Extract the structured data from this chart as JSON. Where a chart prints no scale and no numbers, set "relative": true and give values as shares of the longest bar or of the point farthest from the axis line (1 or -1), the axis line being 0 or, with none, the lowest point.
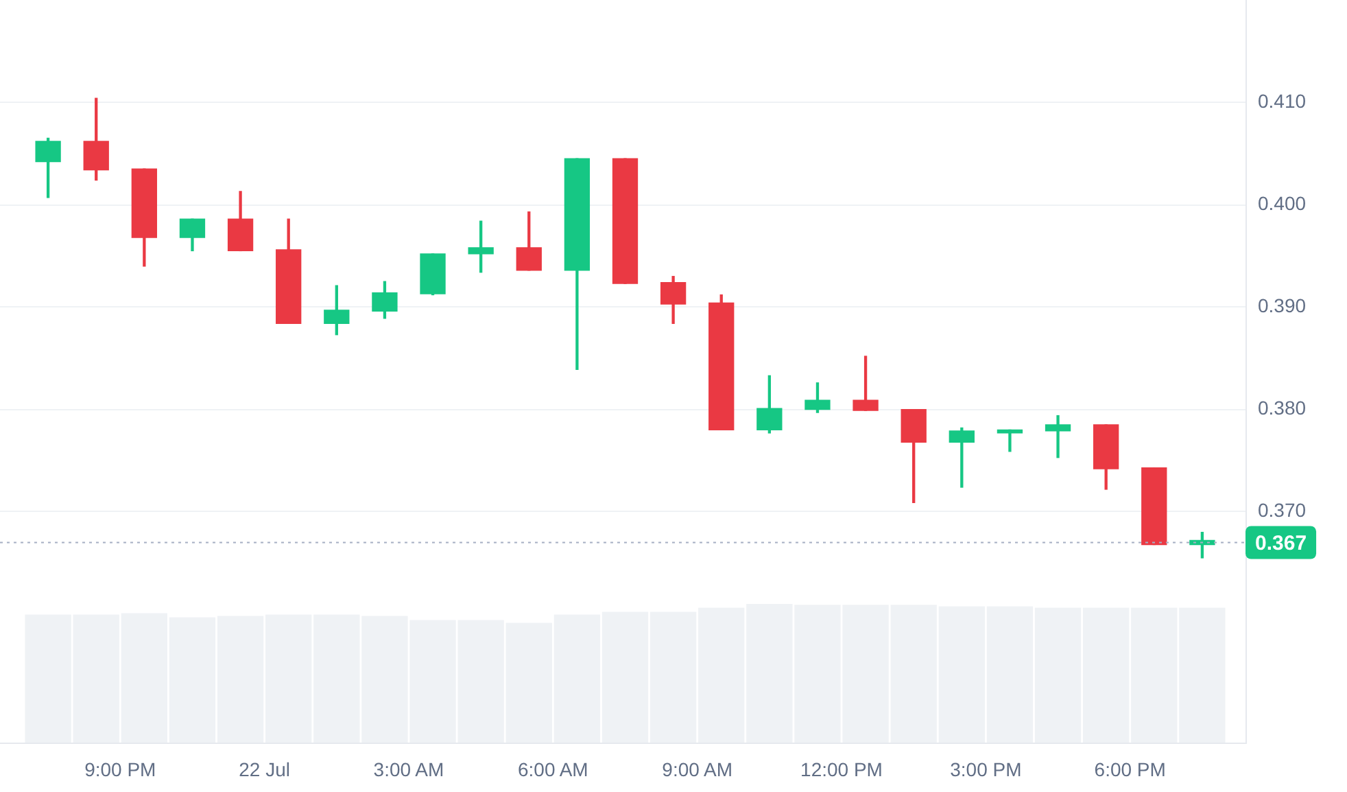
{
  "chart_data": [
    {
      "type": "candlestick",
      "x": [
        "--07-21T19:30",
        "--07-21T20:30",
        "--07-21T21:30",
        "--07-21T22:30",
        "--07-21T23:30",
        "--07-22T00:30",
        "--07-22T01:30",
        "--07-22T02:30",
        "--07-22T03:30",
        "--07-22T04:30",
        "--07-22T05:30",
        "--07-22T06:30",
        "--07-22T07:30",
        "--07-22T08:30",
        "--07-22T09:30",
        "--07-22T10:30",
        "--07-22T11:30",
        "--07-22T12:30",
        "--07-22T13:30",
        "--07-22T14:30",
        "--07-22T15:30",
        "--07-22T16:30",
        "--07-22T17:30",
        "--07-22T18:30",
        "--07-22T19:30"
      ],
      "ohlc": [
        [
          0.4042,
          0.4065,
          0.4007,
          0.4062
        ],
        [
          0.4062,
          0.4104,
          0.4024,
          0.4034
        ],
        [
          0.4035,
          0.4035,
          0.394,
          0.3968
        ],
        [
          0.3968,
          0.3986,
          0.3955,
          0.3986
        ],
        [
          0.3986,
          0.4013,
          0.3955,
          0.3955
        ],
        [
          0.3956,
          0.3986,
          0.3884,
          0.3884
        ],
        [
          0.3884,
          0.3921,
          0.3873,
          0.3897
        ],
        [
          0.3896,
          0.3925,
          0.3889,
          0.3914
        ],
        [
          0.3913,
          0.3952,
          0.3912,
          0.3952
        ],
        [
          0.3952,
          0.3984,
          0.3934,
          0.3958
        ],
        [
          0.3958,
          0.3993,
          0.3936,
          0.3936
        ],
        [
          0.3936,
          0.4045,
          0.3839,
          0.4045
        ],
        [
          0.4045,
          0.4045,
          0.3923,
          0.3923
        ],
        [
          0.3924,
          0.393,
          0.3884,
          0.3903
        ],
        [
          0.3904,
          0.3912,
          0.378,
          0.378
        ],
        [
          0.378,
          0.3833,
          0.3777,
          0.3801
        ],
        [
          0.38,
          0.3826,
          0.3797,
          0.3809
        ],
        [
          0.3809,
          0.3852,
          0.3799,
          0.3799
        ],
        [
          0.38,
          0.38,
          0.3709,
          0.3768
        ],
        [
          0.3768,
          0.3782,
          0.3724,
          0.3779
        ],
        [
          0.3777,
          0.378,
          0.3759,
          0.378
        ],
        [
          0.3779,
          0.3794,
          0.3753,
          0.3785
        ],
        [
          0.3785,
          0.3785,
          0.3722,
          0.3742
        ],
        [
          0.3743,
          0.3743,
          0.3668,
          0.3668
        ],
        [
          0.3668,
          0.368,
          0.3655,
          0.3672
        ]
      ],
      "colors": [
        "#16c784",
        "#ea3943",
        "#ea3943",
        "#16c784",
        "#ea3943",
        "#ea3943",
        "#16c784",
        "#16c784",
        "#16c784",
        "#16c784",
        "#ea3943",
        "#16c784",
        "#ea3943",
        "#ea3943",
        "#ea3943",
        "#16c784",
        "#16c784",
        "#ea3943",
        "#ea3943",
        "#16c784",
        "#16c784",
        "#16c784",
        "#ea3943",
        "#ea3943",
        "#16c784"
      ],
      "xlim": [
        "--07-21T18:30",
        "--07-22T20:24"
      ],
      "ylim": [
        0.361,
        0.42
      ],
      "yticks": [
        {
          "value": 0.37,
          "label": "0.370"
        },
        {
          "value": 0.38,
          "label": "0.380"
        },
        {
          "value": 0.39,
          "label": "0.390"
        },
        {
          "value": 0.4,
          "label": "0.400"
        },
        {
          "value": 0.41,
          "label": "0.410"
        }
      ],
      "tick_labels": "y",
      "grid": "y",
      "ref_lines": [
        {
          "axis": "y",
          "value": 0.367,
          "label": "0.367",
          "line_style": "dotted"
        }
      ]
    },
    {
      "type": "bar",
      "relative": true,
      "x": [
        "--07-21T19:30",
        "--07-21T20:30",
        "--07-21T21:30",
        "--07-21T22:30",
        "--07-21T23:30",
        "--07-22T00:30",
        "--07-22T01:30",
        "--07-22T02:30",
        "--07-22T03:30",
        "--07-22T04:30",
        "--07-22T05:30",
        "--07-22T06:30",
        "--07-22T07:30",
        "--07-22T08:30",
        "--07-22T09:30",
        "--07-22T10:30",
        "--07-22T11:30",
        "--07-22T12:30",
        "--07-22T13:30",
        "--07-22T14:30",
        "--07-22T15:30",
        "--07-22T16:30",
        "--07-22T17:30",
        "--07-22T18:30",
        "--07-22T19:30"
      ],
      "color": "#eff2f5",
      "values": [
        0.92,
        0.92,
        0.93,
        0.9,
        0.91,
        0.92,
        0.92,
        0.91,
        0.88,
        0.88,
        0.86,
        0.92,
        0.94,
        0.94,
        0.97,
        1,
        0.99,
        0.99,
        0.99,
        0.98,
        0.98,
        0.97,
        0.97,
        0.97,
        0.97
      ],
      "xlim": [
        "--07-21T18:30",
        "--07-22T20:24"
      ],
      "xticks": [
        {
          "value": "--07-21T21:00",
          "label": "9:00 PM"
        },
        {
          "value": "--07-22T00:00",
          "label": "22 Jul"
        },
        {
          "value": "--07-22T03:00",
          "label": "3:00 AM"
        },
        {
          "value": "--07-22T06:00",
          "label": "6:00 AM"
        },
        {
          "value": "--07-22T09:00",
          "label": "9:00 AM"
        },
        {
          "value": "--07-22T12:00",
          "label": "12:00 PM"
        },
        {
          "value": "--07-22T15:00",
          "label": "3:00 PM"
        },
        {
          "value": "--07-22T18:00",
          "label": "6:00 PM"
        }
      ],
      "tick_labels": "x"
    }
  ]
}
